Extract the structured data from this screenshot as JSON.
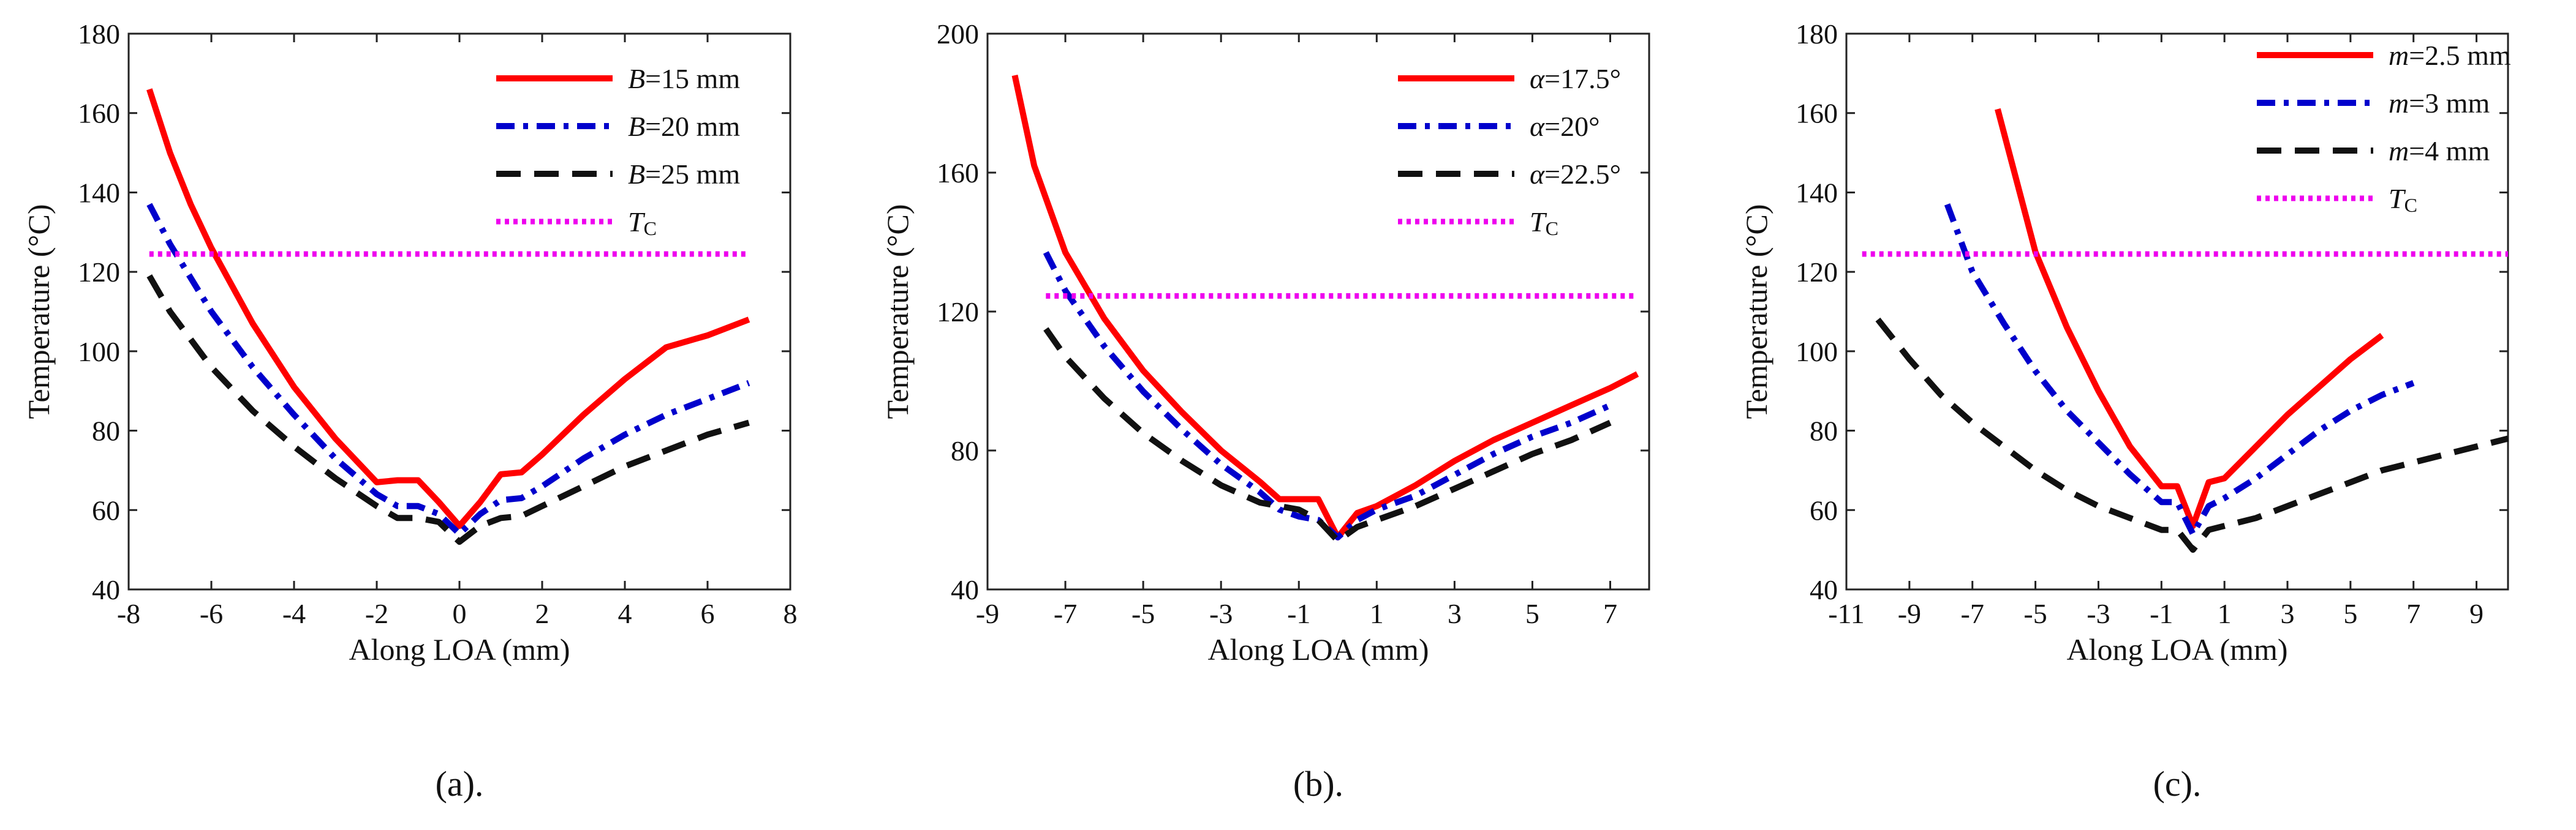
{
  "chart_data": [
    {
      "type": "line",
      "caption": "(a).",
      "xlabel": "Along LOA (mm)",
      "ylabel": "Temperature (°C)",
      "xlim": [
        -8,
        8
      ],
      "ylim": [
        40,
        180
      ],
      "xticks": [
        -8,
        -6,
        -4,
        -2,
        0,
        2,
        4,
        6,
        8
      ],
      "yticks": [
        40,
        60,
        80,
        100,
        120,
        140,
        160,
        180
      ],
      "series": [
        {
          "name": "B=15 mm",
          "legend_var": "B",
          "legend_rest": "=15 mm",
          "sub": "",
          "color": "#ff0000",
          "dash": "solid",
          "x": [
            -7.5,
            -7,
            -6.5,
            -6,
            -5,
            -4,
            -3,
            -2,
            -1.5,
            -1,
            -0.5,
            0,
            0.5,
            1,
            1.5,
            2,
            3,
            4,
            5,
            6,
            7
          ],
          "y": [
            166,
            150,
            137,
            126,
            107,
            91,
            78,
            67,
            67.5,
            67.5,
            62,
            56,
            62,
            69,
            69.5,
            74,
            84,
            93,
            101,
            104,
            108
          ]
        },
        {
          "name": "B=20 mm",
          "legend_var": "B",
          "legend_rest": "=20 mm",
          "sub": "",
          "color": "#0000cc",
          "dash": "dashdot",
          "x": [
            -7.5,
            -7,
            -6,
            -5,
            -4,
            -3,
            -2,
            -1.5,
            -1,
            -0.5,
            0,
            0.5,
            1,
            1.5,
            2,
            3,
            4,
            5,
            6,
            7
          ],
          "y": [
            137,
            127,
            110,
            96,
            84,
            73,
            64,
            61,
            61,
            59,
            54,
            59,
            62.5,
            63,
            66,
            73,
            79,
            84,
            88,
            92
          ]
        },
        {
          "name": "B=25 mm",
          "legend_var": "B",
          "legend_rest": "=25 mm",
          "sub": "",
          "color": "#111111",
          "dash": "dashed",
          "x": [
            -7.5,
            -7,
            -6,
            -5,
            -4,
            -3,
            -2,
            -1.5,
            -1,
            -0.5,
            0,
            0.5,
            1,
            1.5,
            2,
            3,
            4,
            5,
            6,
            7
          ],
          "y": [
            119,
            110,
            96,
            85,
            76,
            68,
            61,
            58,
            58,
            57,
            52,
            56,
            58,
            58.5,
            61,
            66,
            71,
            75,
            79,
            82
          ]
        },
        {
          "name": "Tc",
          "legend_var": "T",
          "legend_rest": "",
          "sub": "C",
          "color": "#ee00ee",
          "dash": "dotted",
          "x": [
            -7.5,
            7
          ],
          "y": [
            124.5,
            124.5
          ]
        }
      ]
    },
    {
      "type": "line",
      "caption": "(b).",
      "xlabel": "Along LOA (mm)",
      "ylabel": "Temperature (°C)",
      "xlim": [
        -9,
        8
      ],
      "ylim": [
        40,
        200
      ],
      "xticks": [
        -9,
        -7,
        -5,
        -3,
        -1,
        1,
        3,
        5,
        7
      ],
      "yticks": [
        40,
        80,
        120,
        160,
        200
      ],
      "series": [
        {
          "name": "α=17.5°",
          "legend_var": "α",
          "legend_rest": "=17.5°",
          "sub": "",
          "color": "#ff0000",
          "dash": "solid",
          "x": [
            -8.3,
            -7.8,
            -7,
            -6,
            -5,
            -4,
            -3,
            -2,
            -1.5,
            -1,
            -0.5,
            0,
            0.5,
            1,
            2,
            3,
            4,
            5,
            6,
            7,
            7.7
          ],
          "y": [
            188,
            162,
            137,
            118,
            103,
            91,
            80,
            71,
            66,
            66,
            66,
            55,
            62,
            64,
            70,
            77,
            83,
            88,
            93,
            98,
            102
          ]
        },
        {
          "name": "α=20°",
          "legend_var": "α",
          "legend_rest": "=20°",
          "sub": "",
          "color": "#0000cc",
          "dash": "dashdot",
          "x": [
            -7.5,
            -7,
            -6,
            -5,
            -4,
            -3,
            -2,
            -1.5,
            -1,
            -0.5,
            0,
            0.5,
            1,
            2,
            3,
            4,
            5,
            6,
            7
          ],
          "y": [
            137,
            126,
            110,
            97,
            86,
            76,
            68,
            63,
            61,
            60,
            55,
            60,
            63,
            67,
            73,
            79,
            84,
            88,
            93
          ]
        },
        {
          "name": "α=22.5°",
          "legend_var": "α",
          "legend_rest": "=22.5°",
          "sub": "",
          "color": "#111111",
          "dash": "dashed",
          "x": [
            -7.5,
            -7,
            -6,
            -5,
            -4,
            -3,
            -2,
            -1,
            -0.5,
            0,
            0.5,
            1,
            2,
            3,
            4,
            5,
            6,
            7
          ],
          "y": [
            115,
            107,
            95,
            85,
            77,
            70,
            65,
            63,
            60,
            54,
            58,
            60,
            64,
            69,
            74,
            79,
            83,
            88
          ]
        },
        {
          "name": "Tc",
          "legend_var": "T",
          "legend_rest": "",
          "sub": "C",
          "color": "#ee00ee",
          "dash": "dotted",
          "x": [
            -7.5,
            7.7
          ],
          "y": [
            124.5,
            124.5
          ]
        }
      ]
    },
    {
      "type": "line",
      "caption": "(c).",
      "xlabel": "Along LOA (mm)",
      "ylabel": "Temperature (°C)",
      "xlim": [
        -11,
        10
      ],
      "ylim": [
        40,
        180
      ],
      "xticks": [
        -11,
        -9,
        -7,
        -5,
        -3,
        -1,
        1,
        3,
        5,
        7,
        9
      ],
      "yticks": [
        40,
        60,
        80,
        100,
        120,
        140,
        160,
        180
      ],
      "series": [
        {
          "name": "m=2.5 mm",
          "legend_var": "m",
          "legend_rest": "=2.5 mm",
          "sub": "",
          "color": "#ff0000",
          "dash": "solid",
          "x": [
            -6.2,
            -5.5,
            -5,
            -4,
            -3,
            -2,
            -1,
            -0.5,
            0,
            0.5,
            1,
            2,
            3,
            4,
            5,
            6
          ],
          "y": [
            161,
            140,
            125,
            106,
            90,
            76,
            66,
            66,
            56,
            67,
            68,
            76,
            84,
            91,
            98,
            104
          ]
        },
        {
          "name": "m=3 mm",
          "legend_var": "m",
          "legend_rest": "=3 mm",
          "sub": "",
          "color": "#0000cc",
          "dash": "dashdot",
          "x": [
            -7.8,
            -7,
            -6,
            -5,
            -4,
            -3,
            -2,
            -1,
            -0.5,
            0,
            0.5,
            1,
            2,
            3,
            4,
            5,
            6,
            7
          ],
          "y": [
            137,
            120,
            107,
            95,
            85,
            77,
            69,
            62,
            62,
            54,
            61,
            63,
            68,
            74,
            80,
            85,
            89,
            92
          ]
        },
        {
          "name": "m=4 mm",
          "legend_var": "m",
          "legend_rest": "=4 mm",
          "sub": "",
          "color": "#111111",
          "dash": "dashed",
          "x": [
            -10,
            -9,
            -8,
            -7,
            -6,
            -5,
            -4,
            -3,
            -2,
            -1,
            -0.5,
            0,
            0.5,
            1,
            2,
            3,
            4,
            5,
            6,
            7,
            8,
            9,
            10
          ],
          "y": [
            108,
            98,
            89,
            82,
            76,
            70,
            65,
            61,
            58,
            55,
            55,
            50,
            55,
            56,
            58,
            61,
            64,
            67,
            70,
            72,
            74,
            76,
            78
          ]
        },
        {
          "name": "Tc",
          "legend_var": "T",
          "legend_rest": "",
          "sub": "C",
          "color": "#ee00ee",
          "dash": "dotted",
          "x": [
            -10.5,
            10
          ],
          "y": [
            124.5,
            124.5
          ]
        }
      ]
    }
  ]
}
